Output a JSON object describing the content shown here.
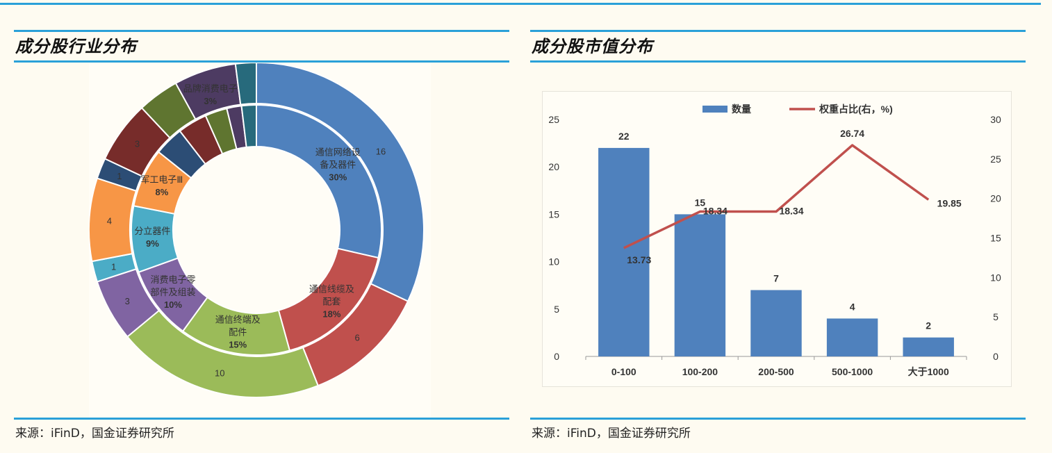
{
  "left": {
    "title": "成分股行业分布",
    "source": "来源：iFinD，国金证券研究所"
  },
  "right": {
    "title": "成分股市值分布",
    "source": "来源：iFinD，国金证券研究所"
  },
  "chart_data": [
    {
      "type": "pie",
      "variant": "double-donut",
      "inner_ring": {
        "slices": [
          {
            "label": "通信网络设备及器件",
            "percent": "30%",
            "value": 30,
            "color": "#4f81bd"
          },
          {
            "label": "通信线缆及配套",
            "percent": "18%",
            "value": 18,
            "color": "#c0504d"
          },
          {
            "label": "通信终端及配件",
            "percent": "15%",
            "value": 15,
            "color": "#9bbb59"
          },
          {
            "label": "消费电子零部件及组装",
            "percent": "10%",
            "value": 10,
            "color": "#8064a2"
          },
          {
            "label": "分立器件",
            "percent": "9%",
            "value": 9,
            "color": "#4bacc6"
          },
          {
            "label": "军工电子Ⅲ",
            "percent": "8%",
            "value": 8,
            "color": "#f79646"
          },
          {
            "label": "",
            "percent": "",
            "value": 4,
            "color": "#2c4d75"
          },
          {
            "label": "",
            "percent": "",
            "value": 4,
            "color": "#772c2a"
          },
          {
            "label": "品牌消费电子",
            "percent": "3%",
            "value": 3,
            "color": "#5f7530"
          },
          {
            "label": "",
            "percent": "",
            "value": 2,
            "color": "#4d3b62"
          },
          {
            "label": "",
            "percent": "",
            "value": 2,
            "color": "#276a7c"
          }
        ]
      },
      "outer_ring": {
        "slices": [
          {
            "label": "16",
            "value": 16,
            "color": "#4f81bd"
          },
          {
            "label": "6",
            "value": 6,
            "color": "#c0504d"
          },
          {
            "label": "10",
            "value": 10,
            "color": "#9bbb59"
          },
          {
            "label": "3",
            "value": 3,
            "color": "#8064a2"
          },
          {
            "label": "1",
            "value": 1,
            "color": "#4bacc6"
          },
          {
            "label": "4",
            "value": 4,
            "color": "#f79646"
          },
          {
            "label": "1",
            "value": 1,
            "color": "#2c4d75"
          },
          {
            "label": "3",
            "value": 3,
            "color": "#772c2a"
          },
          {
            "label": "",
            "value": 2,
            "color": "#5f7530"
          },
          {
            "label": "",
            "value": 3,
            "color": "#4d3b62"
          },
          {
            "label": "",
            "value": 1,
            "color": "#276a7c"
          }
        ]
      }
    },
    {
      "type": "bar",
      "categories": [
        "0-100",
        "100-200",
        "200-500",
        "500-1000",
        "大于1000"
      ],
      "series": [
        {
          "name": "数量",
          "type": "bar",
          "axis": "left",
          "values": [
            22,
            15,
            7,
            4,
            2
          ],
          "color": "#4f81bd"
        },
        {
          "name": "权重占比(右，%)",
          "type": "line",
          "axis": "right",
          "values": [
            13.73,
            18.34,
            18.34,
            26.74,
            19.85
          ],
          "color": "#c0504d"
        }
      ],
      "ylim_left": [
        0,
        25
      ],
      "yticks_left": [
        0,
        5,
        10,
        15,
        20,
        25
      ],
      "ylim_right": [
        0,
        30
      ],
      "yticks_right": [
        0,
        5,
        10,
        15,
        20,
        25,
        30
      ],
      "legend_position": "top",
      "grid": false
    }
  ]
}
